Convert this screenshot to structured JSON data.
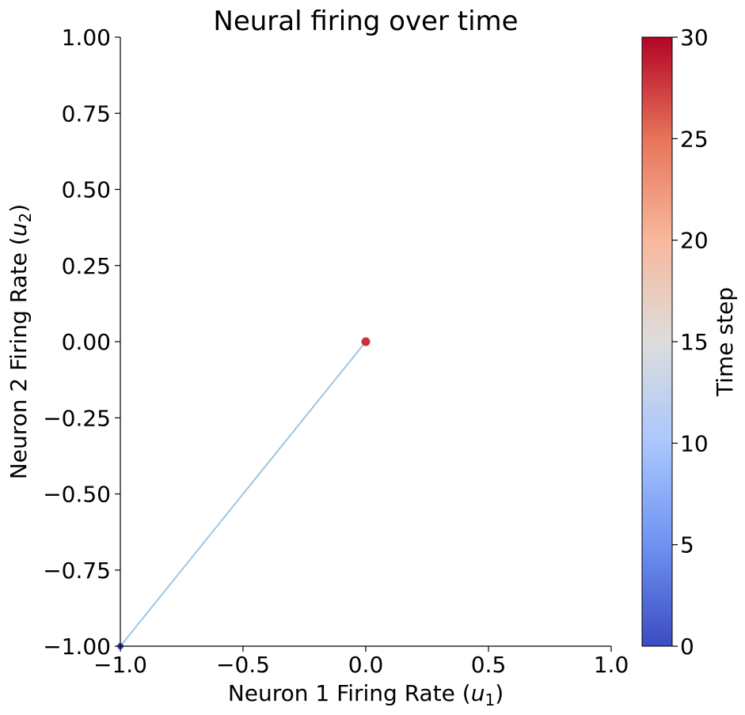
{
  "chart_data": {
    "type": "line",
    "title": "Neural firing over time",
    "xlabel": "Neuron 1 Firing Rate (",
    "xlabel_var": "u",
    "xlabel_sub": "1",
    "xlabel_close": ")",
    "ylabel": "Neuron 2 Firing Rate (",
    "ylabel_var": "u",
    "ylabel_sub": "2",
    "ylabel_close": ")",
    "xlim": [
      -1.0,
      1.0
    ],
    "ylim": [
      -1.0,
      1.0
    ],
    "xticks": [
      -1.0,
      -0.5,
      0.0,
      0.5,
      1.0
    ],
    "xtick_labels": [
      "−1.0",
      "−0.5",
      "0.0",
      "0.5",
      "1.0"
    ],
    "yticks": [
      -1.0,
      -0.75,
      -0.5,
      -0.25,
      0.0,
      0.25,
      0.5,
      0.75,
      1.0
    ],
    "ytick_labels": [
      "−1.00",
      "−0.75",
      "−0.50",
      "−0.25",
      "0.00",
      "0.25",
      "0.50",
      "0.75",
      "1.00"
    ],
    "series": [
      {
        "x": [
          -1.0,
          0.0
        ],
        "y": [
          -1.0,
          0.0
        ],
        "color": "#9ec6e2"
      }
    ],
    "start_point": {
      "x": -1.0,
      "y": -1.0,
      "color": "#3b4cc0"
    },
    "end_point": {
      "x": 0.0,
      "y": 0.0,
      "color": "#c8323a"
    },
    "colorbar": {
      "label": "Time step",
      "min": 0,
      "max": 30,
      "ticks": [
        0,
        5,
        10,
        15,
        20,
        25,
        30
      ],
      "tick_labels": [
        "0",
        "5",
        "10",
        "15",
        "20",
        "25",
        "30"
      ],
      "colormap": "coolwarm",
      "colors": [
        "#3b4cc0",
        "#6f92f3",
        "#aac7fd",
        "#dddddd",
        "#f7b89c",
        "#e7745b",
        "#b40426"
      ]
    },
    "grid": false,
    "spines": "left-bottom"
  }
}
